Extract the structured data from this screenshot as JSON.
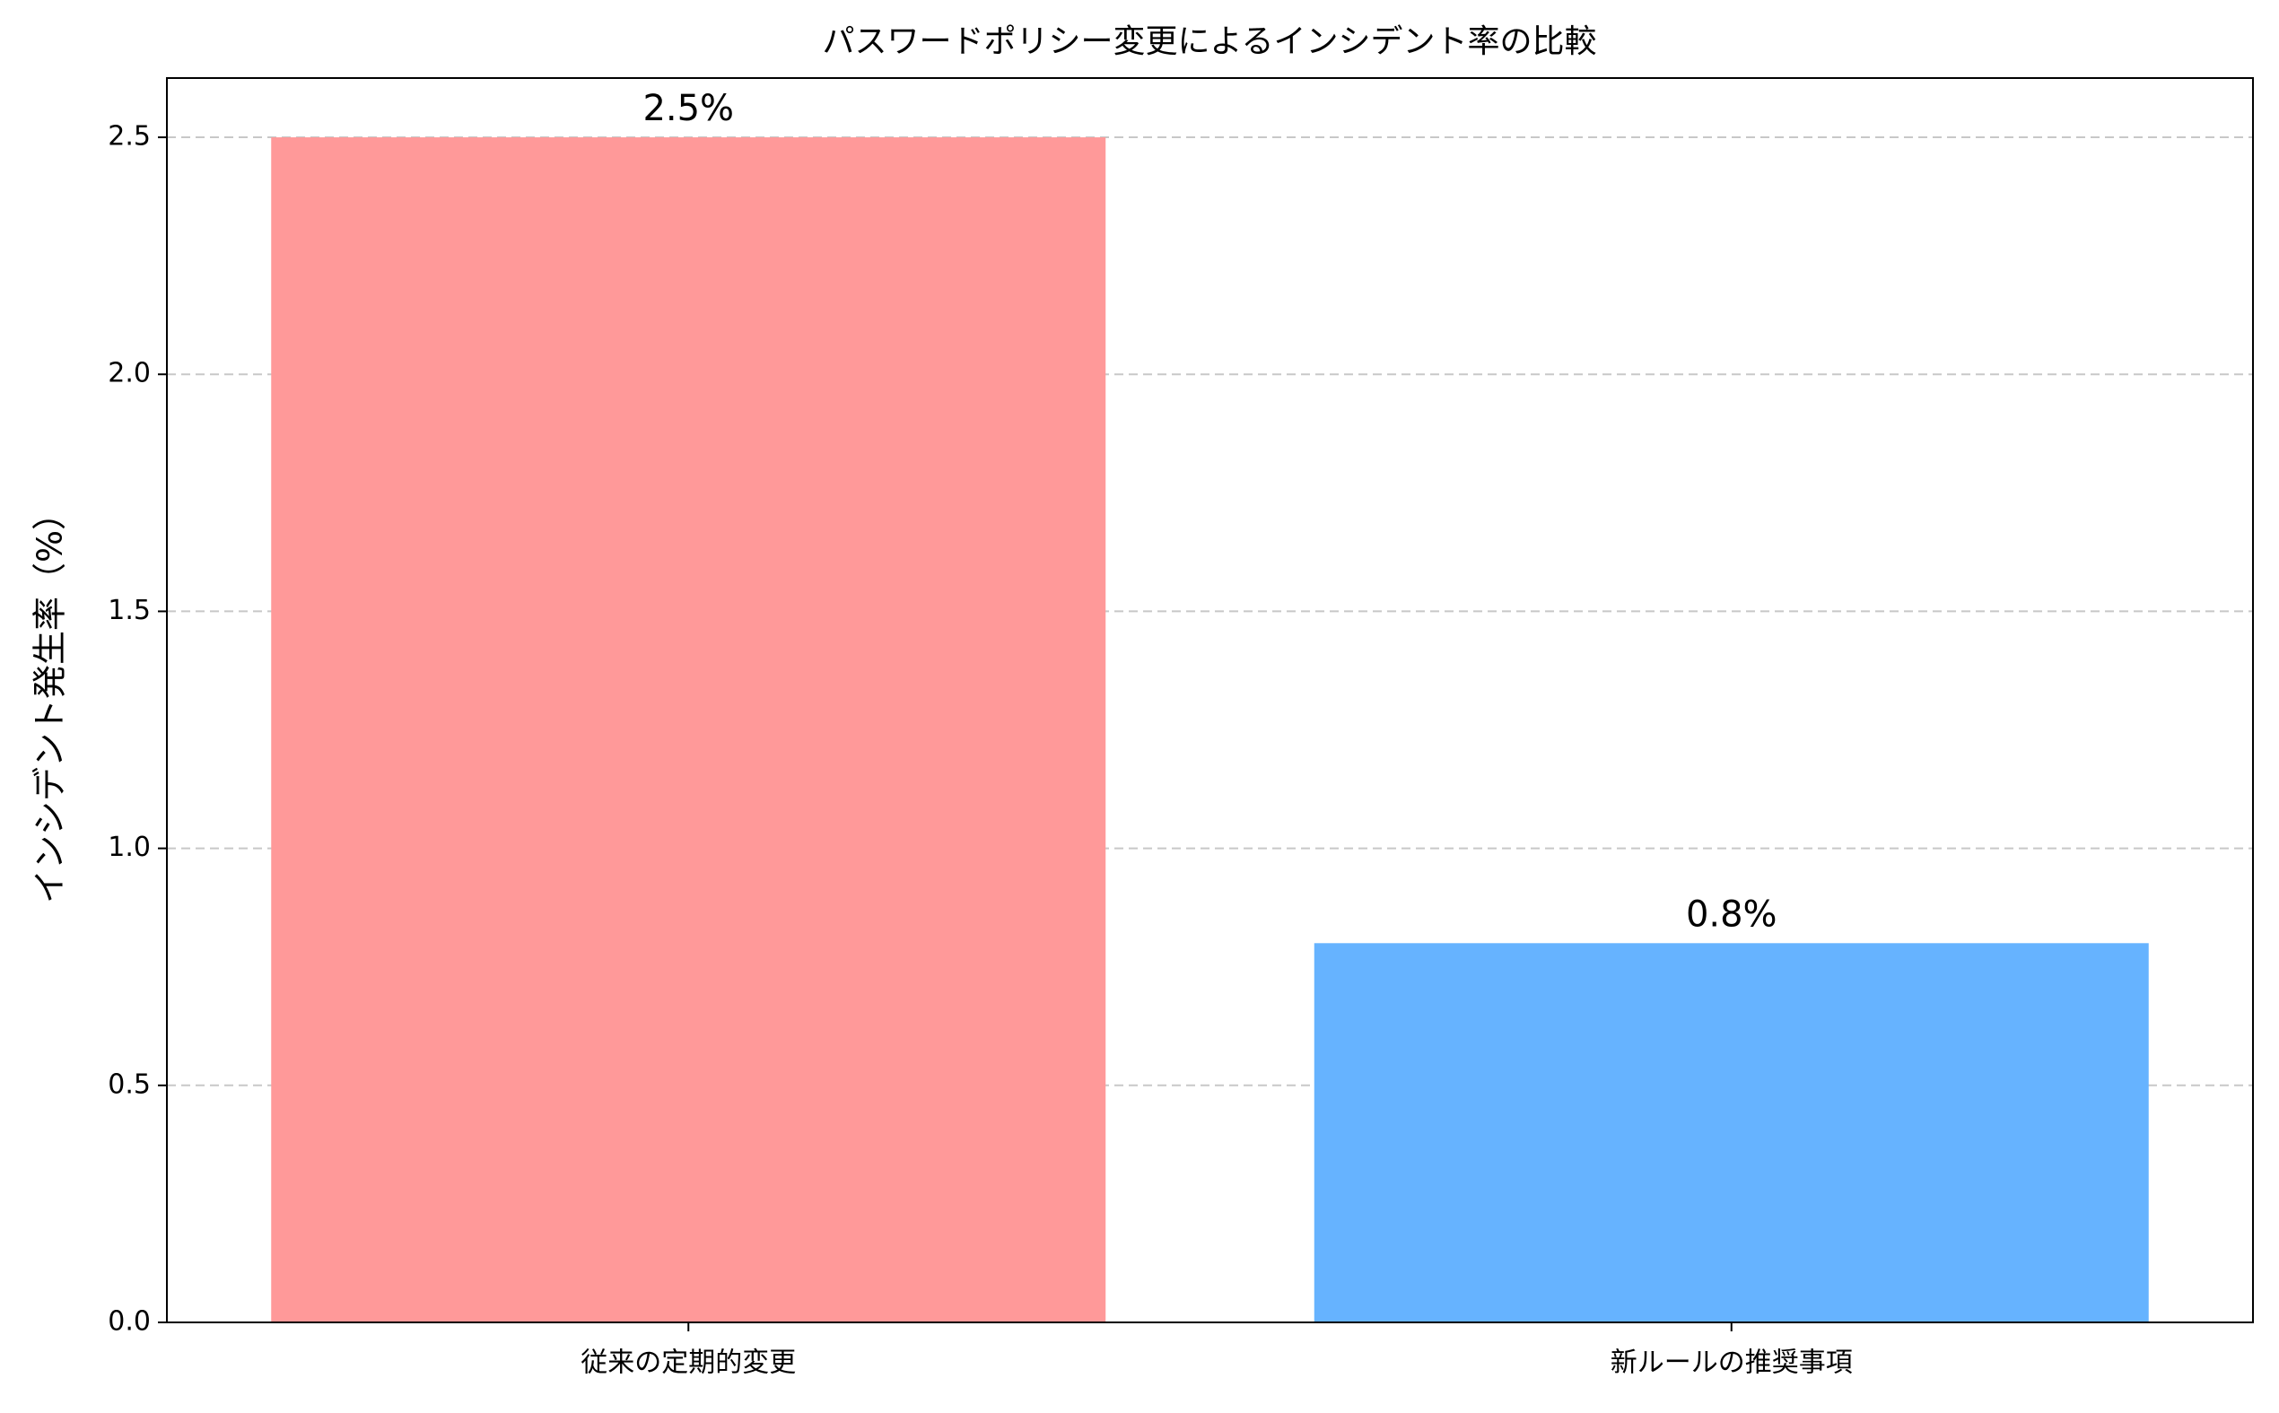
{
  "chart_data": {
    "type": "bar",
    "title": "パスワードポリシー変更によるインシデント率の比較",
    "ylabel": "インシデント発生率（%）",
    "categories": [
      "従来の定期的変更",
      "新ルールの推奨事項"
    ],
    "values": [
      2.5,
      0.8
    ],
    "value_labels": [
      "2.5%",
      "0.8%"
    ],
    "colors": [
      "#ff9999",
      "#66b3ff"
    ],
    "ylim": [
      0,
      2.625
    ],
    "yticks": [
      {
        "value": 0,
        "label": "0.0"
      },
      0.5,
      {
        "value": 1,
        "label": "1.0"
      },
      1.5,
      {
        "value": 2,
        "label": "2.0"
      },
      2.5
    ],
    "grid": true
  }
}
